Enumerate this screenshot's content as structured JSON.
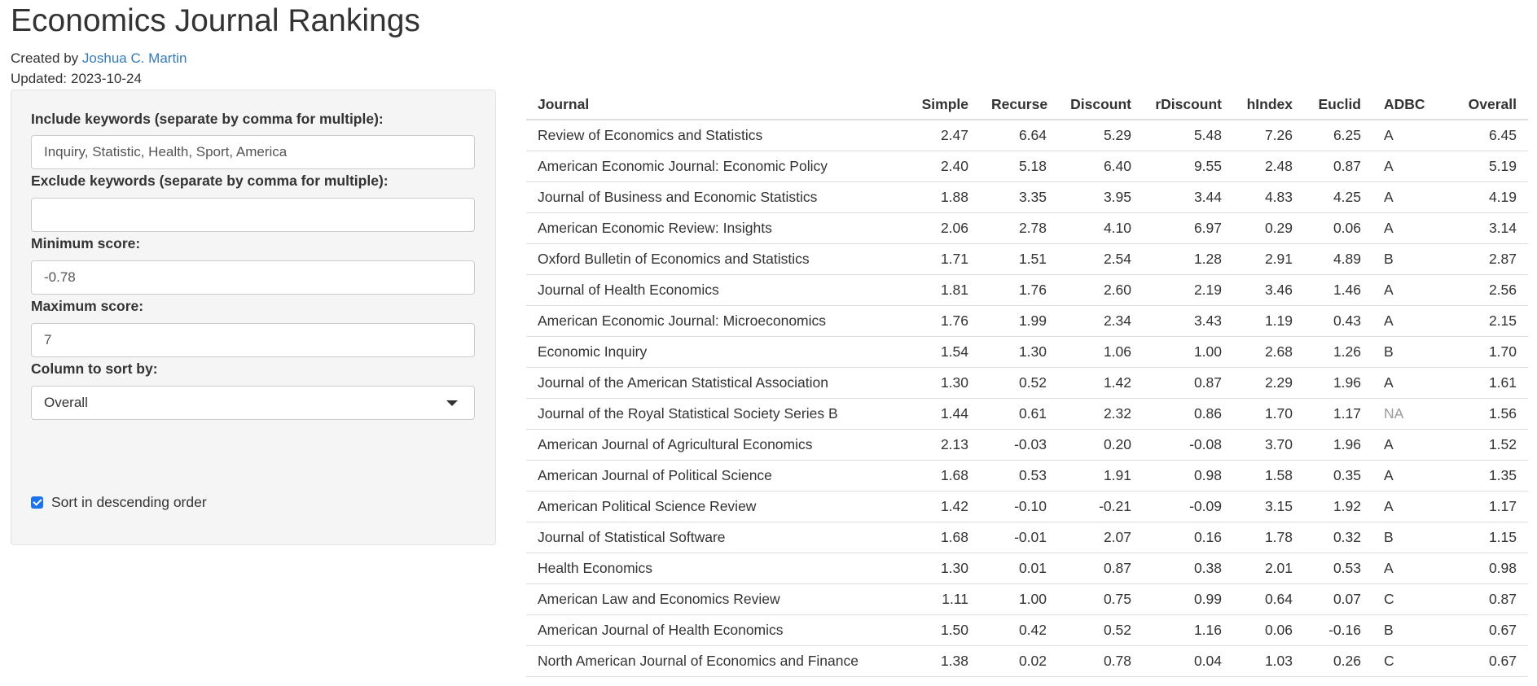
{
  "header": {
    "title": "Economics Journal Rankings",
    "created_by_label": "Created by",
    "author": "Joshua C. Martin",
    "updated_label": "Updated:",
    "updated_date": "2023-10-24"
  },
  "sidebar": {
    "include_label": "Include keywords (separate by comma for multiple):",
    "include_value": "Inquiry, Statistic, Health, Sport, America",
    "exclude_label": "Exclude keywords (separate by comma for multiple):",
    "exclude_value": "",
    "min_label": "Minimum score:",
    "min_value": "-0.78",
    "max_label": "Maximum score:",
    "max_value": "7",
    "sort_label": "Column to sort by:",
    "sort_value": "Overall",
    "desc_label": "Sort in descending order",
    "desc_checked": true
  },
  "table": {
    "columns": [
      "Journal",
      "Simple",
      "Recurse",
      "Discount",
      "rDiscount",
      "hIndex",
      "Euclid",
      "ADBC",
      "Overall"
    ],
    "rows": [
      [
        "Review of Economics and Statistics",
        "2.47",
        "6.64",
        "5.29",
        "5.48",
        "7.26",
        "6.25",
        "A",
        "6.45"
      ],
      [
        "American Economic Journal: Economic Policy",
        "2.40",
        "5.18",
        "6.40",
        "9.55",
        "2.48",
        "0.87",
        "A",
        "5.19"
      ],
      [
        "Journal of Business and Economic Statistics",
        "1.88",
        "3.35",
        "3.95",
        "3.44",
        "4.83",
        "4.25",
        "A",
        "4.19"
      ],
      [
        "American Economic Review: Insights",
        "2.06",
        "2.78",
        "4.10",
        "6.97",
        "0.29",
        "0.06",
        "A",
        "3.14"
      ],
      [
        "Oxford Bulletin of Economics and Statistics",
        "1.71",
        "1.51",
        "2.54",
        "1.28",
        "2.91",
        "4.89",
        "B",
        "2.87"
      ],
      [
        "Journal of Health Economics",
        "1.81",
        "1.76",
        "2.60",
        "2.19",
        "3.46",
        "1.46",
        "A",
        "2.56"
      ],
      [
        "American Economic Journal: Microeconomics",
        "1.76",
        "1.99",
        "2.34",
        "3.43",
        "1.19",
        "0.43",
        "A",
        "2.15"
      ],
      [
        "Economic Inquiry",
        "1.54",
        "1.30",
        "1.06",
        "1.00",
        "2.68",
        "1.26",
        "B",
        "1.70"
      ],
      [
        "Journal of the American Statistical Association",
        "1.30",
        "0.52",
        "1.42",
        "0.87",
        "2.29",
        "1.96",
        "A",
        "1.61"
      ],
      [
        "Journal of the Royal Statistical Society Series B",
        "1.44",
        "0.61",
        "2.32",
        "0.86",
        "1.70",
        "1.17",
        "NA",
        "1.56"
      ],
      [
        "American Journal of Agricultural Economics",
        "2.13",
        "-0.03",
        "0.20",
        "-0.08",
        "3.70",
        "1.96",
        "A",
        "1.52"
      ],
      [
        "American Journal of Political Science",
        "1.68",
        "0.53",
        "1.91",
        "0.98",
        "1.58",
        "0.35",
        "A",
        "1.35"
      ],
      [
        "American Political Science Review",
        "1.42",
        "-0.10",
        "-0.21",
        "-0.09",
        "3.15",
        "1.92",
        "A",
        "1.17"
      ],
      [
        "Journal of Statistical Software",
        "1.68",
        "-0.01",
        "2.07",
        "0.16",
        "1.78",
        "0.32",
        "B",
        "1.15"
      ],
      [
        "Health Economics",
        "1.30",
        "0.01",
        "0.87",
        "0.38",
        "2.01",
        "0.53",
        "A",
        "0.98"
      ],
      [
        "American Law and Economics Review",
        "1.11",
        "1.00",
        "0.75",
        "0.99",
        "0.64",
        "0.07",
        "C",
        "0.87"
      ],
      [
        "American Journal of Health Economics",
        "1.50",
        "0.42",
        "0.52",
        "1.16",
        "0.06",
        "-0.16",
        "B",
        "0.67"
      ],
      [
        "North American Journal of Economics and Finance",
        "1.38",
        "0.02",
        "0.78",
        "0.04",
        "1.03",
        "0.26",
        "C",
        "0.67"
      ]
    ]
  }
}
